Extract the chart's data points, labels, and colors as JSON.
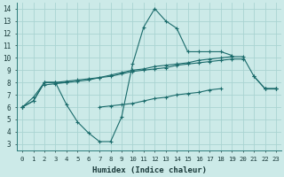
{
  "xlabel": "Humidex (Indice chaleur)",
  "bg_color": "#cceae8",
  "grid_color": "#aad4d2",
  "line_color": "#1a6b6b",
  "xlim": [
    -0.5,
    23.5
  ],
  "ylim": [
    2.5,
    14.5
  ],
  "xticks": [
    0,
    1,
    2,
    3,
    4,
    5,
    6,
    7,
    8,
    9,
    10,
    11,
    12,
    13,
    14,
    15,
    16,
    17,
    18,
    19,
    20,
    21,
    22,
    23
  ],
  "yticks": [
    3,
    4,
    5,
    6,
    7,
    8,
    9,
    10,
    11,
    12,
    13,
    14
  ],
  "line1_y": [
    6.0,
    6.8,
    8.0,
    8.0,
    6.2,
    4.8,
    3.9,
    3.2,
    3.2,
    5.2,
    9.5,
    12.5,
    14.0,
    13.0,
    12.4,
    10.5,
    10.5,
    10.5,
    10.5,
    10.2,
    null,
    8.5,
    7.5,
    7.5
  ],
  "line2_y": [
    6.0,
    6.5,
    8.0,
    8.0,
    8.1,
    8.2,
    8.3,
    8.4,
    8.6,
    8.8,
    9.0,
    9.1,
    9.3,
    9.4,
    9.5,
    9.6,
    9.8,
    9.9,
    10.0,
    10.1,
    10.1,
    8.5,
    7.5,
    7.5
  ],
  "line3_y": [
    6.0,
    6.5,
    8.0,
    8.0,
    8.0,
    8.1,
    8.2,
    8.4,
    8.5,
    8.7,
    8.9,
    9.0,
    9.1,
    9.2,
    9.4,
    9.5,
    9.6,
    9.7,
    9.8,
    9.9,
    9.9,
    null,
    7.5,
    7.5
  ],
  "line4_y": [
    6.0,
    null,
    7.8,
    7.9,
    8.0,
    null,
    null,
    6.0,
    6.1,
    6.2,
    6.3,
    6.5,
    6.7,
    6.8,
    7.0,
    7.1,
    7.2,
    7.4,
    7.5,
    null,
    null,
    null,
    7.5,
    7.5
  ]
}
